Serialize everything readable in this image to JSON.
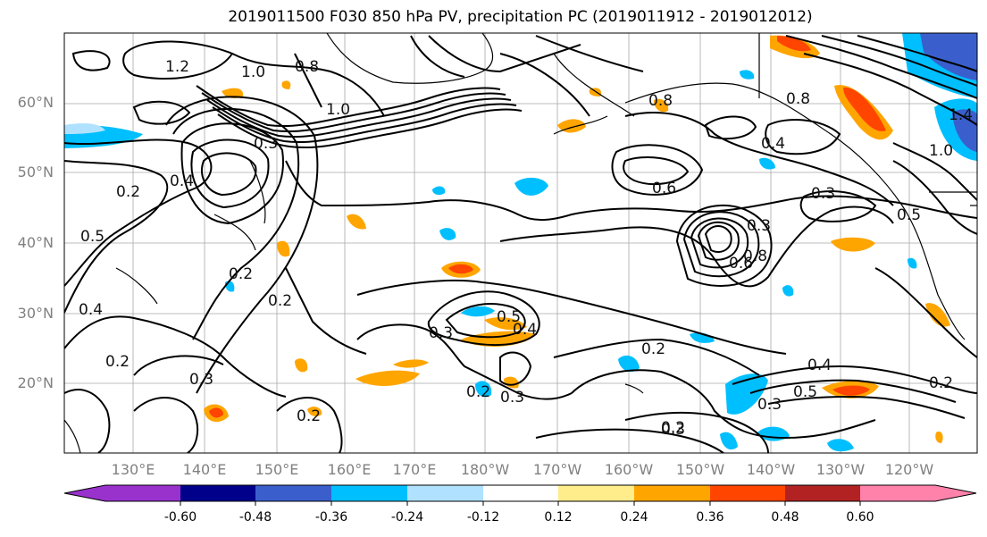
{
  "title": "2019011500 F030 850 hPa PV, precipitation PC (2019011912 - 2019012012)",
  "lat_labels": [
    "60°N",
    "50°N",
    "40°N",
    "30°N",
    "20°N"
  ],
  "lon_labels": [
    "130°E",
    "140°E",
    "150°E",
    "160°E",
    "170°E",
    "180°W",
    "170°W",
    "160°W",
    "150°W",
    "140°W",
    "130°W",
    "120°W"
  ],
  "colorbar": {
    "colors": [
      "#9932cc",
      "#00008b",
      "#3a5fcd",
      "#00bfff",
      "#b0e2ff",
      "#ffffff",
      "#ffec8b",
      "#ffa500",
      "#ff4500",
      "#b22222",
      "#ff82ab"
    ],
    "tick_labels": [
      "-0.60",
      "-0.48",
      "-0.36",
      "-0.24",
      "-0.12",
      "0.12",
      "0.24",
      "0.36",
      "0.48",
      "0.60"
    ]
  },
  "contour_labels": [
    "1.2",
    "1.0",
    "0.8",
    "1.0",
    "0.3",
    "0.4",
    "0.2",
    "0.5",
    "0.2",
    "0.4",
    "0.2",
    "0.3",
    "0.2",
    "0.3",
    "0.5",
    "0.4",
    "0.2",
    "0.3",
    "0.2",
    "0.2",
    "0.3",
    "0.8",
    "0.6",
    "0.4",
    "0.3",
    "0.3",
    "0.8",
    "0.6",
    "0.5",
    "0.4",
    "0.5",
    "0.3",
    "0.2",
    "0.2",
    "1.4",
    "1.0",
    "0.8"
  ]
}
